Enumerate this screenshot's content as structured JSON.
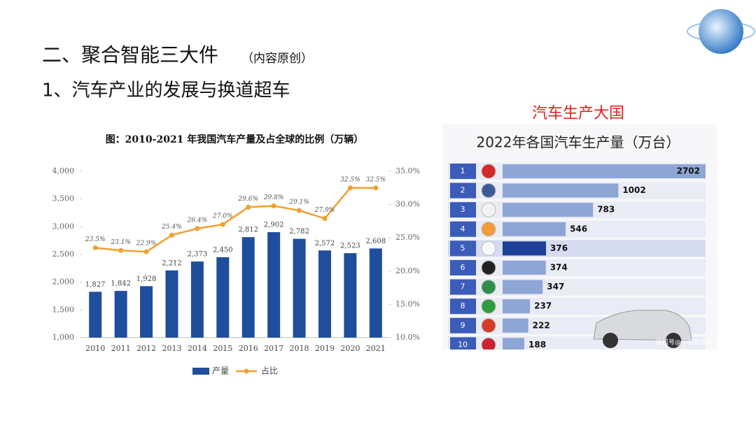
{
  "slide": {
    "heading": "二、聚合智能三大件",
    "heading_note": "（内容原创）",
    "subheading": "1、汽车产业的发展与换道超车"
  },
  "chart_data": [
    {
      "type": "bar",
      "title": "图：2010-2021 年我国汽车产量及占全球的比例（万辆）",
      "categories": [
        "2010",
        "2011",
        "2012",
        "2013",
        "2014",
        "2015",
        "2016",
        "2017",
        "2018",
        "2019",
        "2020",
        "2021"
      ],
      "series": [
        {
          "name": "产量",
          "color": "#1f4e9c",
          "values": [
            1827,
            1842,
            1928,
            2212,
            2373,
            2450,
            2812,
            2902,
            2782,
            2572,
            2523,
            2608
          ],
          "value_labels": [
            "1,827",
            "1,842",
            "1,928",
            "2,212",
            "2,373",
            "2,450",
            "2,812",
            "2,902",
            "2,782",
            "2,572",
            "2,523",
            "2,608"
          ]
        },
        {
          "name": "占比",
          "type": "line",
          "axis": "y2",
          "color": "#f0a030",
          "values": [
            23.5,
            23.1,
            22.9,
            25.4,
            26.4,
            27.0,
            29.6,
            29.8,
            29.1,
            27.9,
            32.5,
            32.5
          ],
          "value_labels": [
            "23.5%",
            "23.1%",
            "22.9%",
            "25.4%",
            "26.4%",
            "27.0%",
            "29.6%",
            "29.8%",
            "29.1%",
            "27.9%",
            "32.5%",
            "32.5%"
          ]
        }
      ],
      "ylim": [
        1000,
        4000
      ],
      "yticks": [
        {
          "value": 1000,
          "label": "1,000"
        },
        {
          "value": 1500,
          "label": "1,500"
        },
        {
          "value": 2000,
          "label": "2,000"
        },
        {
          "value": 2500,
          "label": "2,500"
        },
        {
          "value": 3000,
          "label": "3,000"
        },
        {
          "value": 3500,
          "label": "3,500"
        },
        {
          "value": 4000,
          "label": "4,000"
        }
      ],
      "y2lim": [
        10,
        35
      ],
      "y2ticks": [
        {
          "value": 10,
          "label": "10.0%"
        },
        {
          "value": 15,
          "label": "15.0%"
        },
        {
          "value": 20,
          "label": "20.0%"
        },
        {
          "value": 25,
          "label": "25.0%"
        },
        {
          "value": 30,
          "label": "30.0%"
        },
        {
          "value": 35,
          "label": "35.0%"
        }
      ],
      "grid": false,
      "legend": "bottom"
    },
    {
      "type": "hbar",
      "title": "汽车生产大国",
      "subtitle": "2022年各国汽车生产量（万台）",
      "categories": [
        "1",
        "2",
        "3",
        "4",
        "5",
        "6",
        "7",
        "8",
        "9",
        "10"
      ],
      "values": [
        2702,
        1002,
        783,
        546,
        376,
        374,
        347,
        237,
        222,
        188
      ],
      "colors": [
        "#8ea6d6",
        "#8ea6d6",
        "#8ea6d6",
        "#8ea6d6",
        "#1e3f98",
        "#8ea6d6",
        "#8ea6d6",
        "#8ea6d6",
        "#8ea6d6",
        "#8ea6d6"
      ],
      "watermark": "搜狐号@小明逛城市"
    }
  ]
}
